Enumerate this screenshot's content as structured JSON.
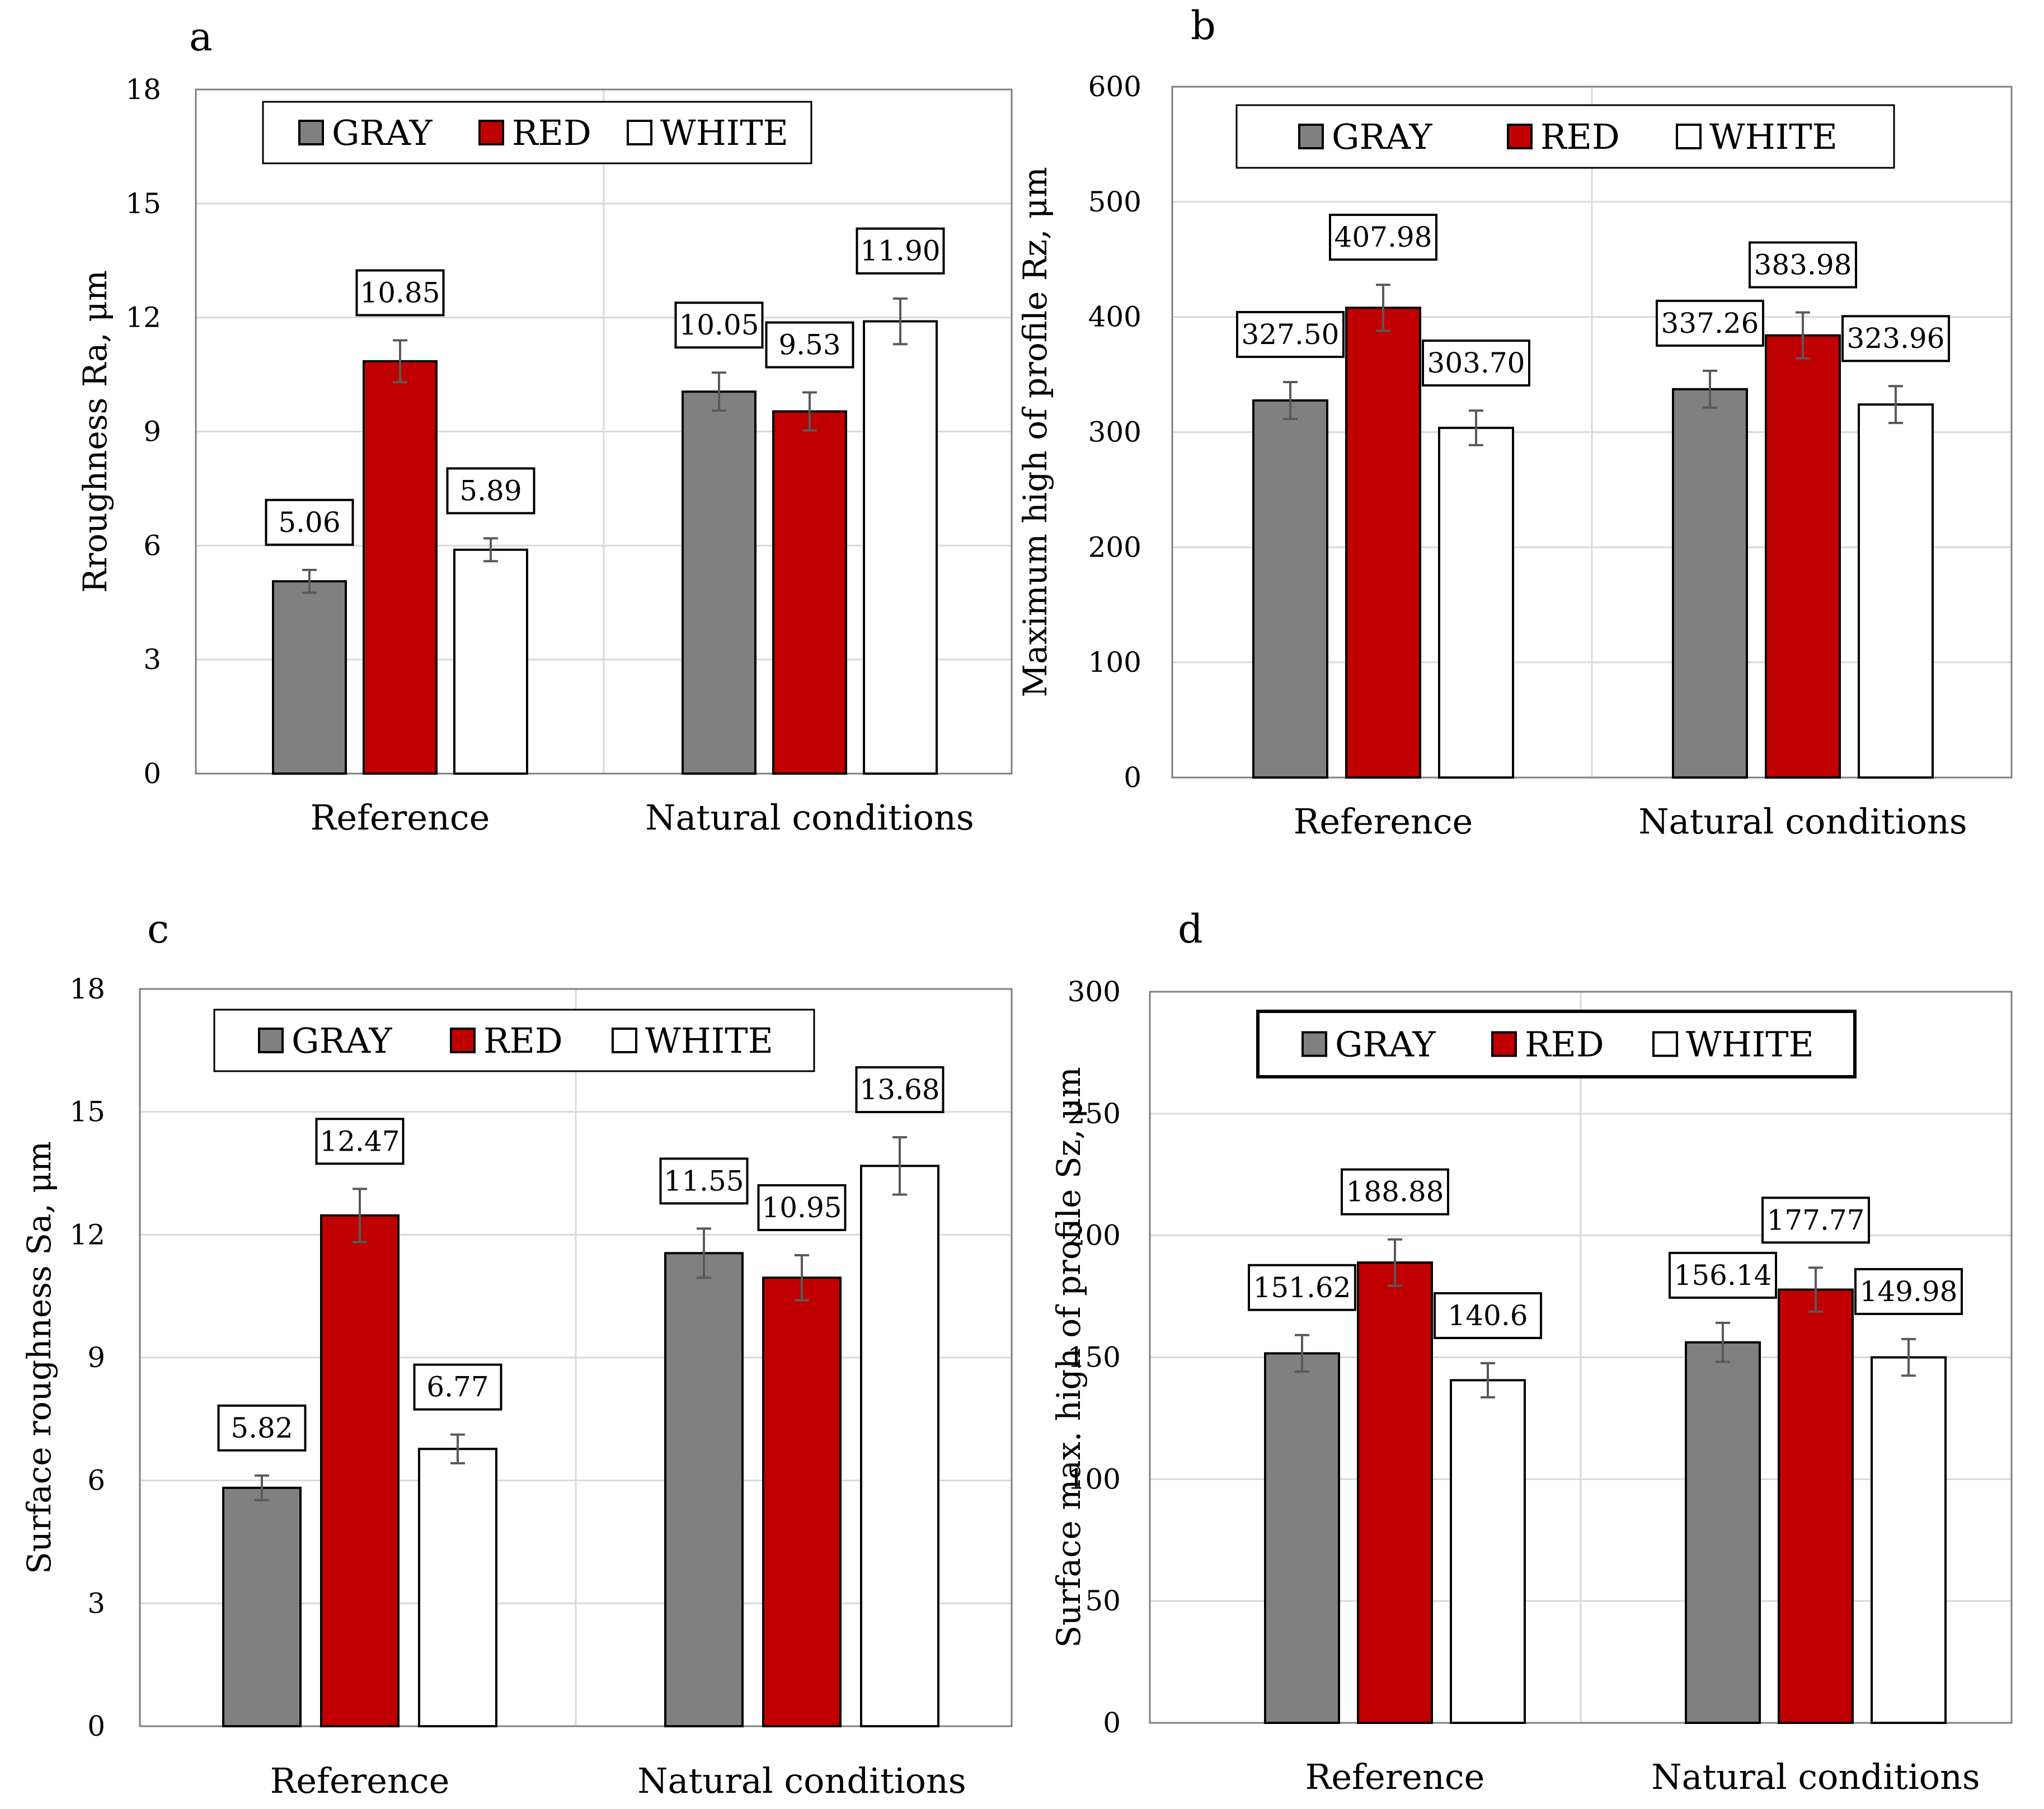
{
  "colors": {
    "gray": "#808080",
    "red": "#c00000",
    "white": "#ffffff",
    "gridline": "#d9d9d9",
    "plot_border": "#7f7f7f",
    "error_bar": "#595959",
    "outline": "#000000"
  },
  "chart_data": [
    {
      "id": "a",
      "panel_label": "a",
      "type": "bar",
      "categories": [
        "Reference",
        "Natural conditions"
      ],
      "series": [
        {
          "name": "GRAY",
          "color_key": "gray",
          "values": [
            5.06,
            10.05
          ],
          "errors": [
            0.3,
            0.5
          ]
        },
        {
          "name": "RED",
          "color_key": "red",
          "values": [
            10.85,
            9.53
          ],
          "errors": [
            0.55,
            0.5
          ]
        },
        {
          "name": "WHITE",
          "color_key": "white",
          "values": [
            5.89,
            11.9
          ],
          "errors": [
            0.3,
            0.6
          ]
        }
      ],
      "data_labels": [
        [
          "5.06",
          "10.05"
        ],
        [
          "10.85",
          "9.53"
        ],
        [
          "5.89",
          "11.90"
        ]
      ],
      "xlabel": "",
      "ylabel": "Rroughness Ra, μm",
      "ylim": [
        0,
        18
      ],
      "yticks": [
        0,
        3,
        6,
        9,
        12,
        15,
        18
      ],
      "grid": true,
      "legend_position": "top"
    },
    {
      "id": "b",
      "panel_label": "b",
      "type": "bar",
      "categories": [
        "Reference",
        "Natural conditions"
      ],
      "series": [
        {
          "name": "GRAY",
          "color_key": "gray",
          "values": [
            327.5,
            337.26
          ],
          "errors": [
            16,
            16
          ]
        },
        {
          "name": "RED",
          "color_key": "red",
          "values": [
            407.98,
            383.98
          ],
          "errors": [
            20,
            20
          ]
        },
        {
          "name": "WHITE",
          "color_key": "white",
          "values": [
            303.7,
            323.96
          ],
          "errors": [
            15,
            16
          ]
        }
      ],
      "data_labels": [
        [
          "327.50",
          "337.26"
        ],
        [
          "407.98",
          "383.98"
        ],
        [
          "303.70",
          "323.96"
        ]
      ],
      "xlabel": "",
      "ylabel": "Maximum high of profile Rz, μm",
      "ylim": [
        0,
        600
      ],
      "yticks": [
        0,
        100,
        200,
        300,
        400,
        500,
        600
      ],
      "grid": true,
      "legend_position": "top"
    },
    {
      "id": "c",
      "panel_label": "c",
      "type": "bar",
      "categories": [
        "Reference",
        "Natural conditions"
      ],
      "series": [
        {
          "name": "GRAY",
          "color_key": "gray",
          "values": [
            5.82,
            11.55
          ],
          "errors": [
            0.3,
            0.6
          ]
        },
        {
          "name": "RED",
          "color_key": "red",
          "values": [
            12.47,
            10.95
          ],
          "errors": [
            0.65,
            0.55
          ]
        },
        {
          "name": "WHITE",
          "color_key": "white",
          "values": [
            6.77,
            13.68
          ],
          "errors": [
            0.35,
            0.7
          ]
        }
      ],
      "data_labels": [
        [
          "5.82",
          "11.55"
        ],
        [
          "12.47",
          "10.95"
        ],
        [
          "6.77",
          "13.68"
        ]
      ],
      "xlabel": "",
      "ylabel": "Surface roughness Sa, μm",
      "ylim": [
        0,
        18
      ],
      "yticks": [
        0,
        3,
        6,
        9,
        12,
        15,
        18
      ],
      "grid": true,
      "legend_position": "top"
    },
    {
      "id": "d",
      "panel_label": "d",
      "type": "bar",
      "categories": [
        "Reference",
        "Natural conditions"
      ],
      "series": [
        {
          "name": "GRAY",
          "color_key": "gray",
          "values": [
            151.62,
            156.14
          ],
          "errors": [
            7.5,
            8
          ]
        },
        {
          "name": "RED",
          "color_key": "red",
          "values": [
            188.88,
            177.77
          ],
          "errors": [
            9.5,
            9
          ]
        },
        {
          "name": "WHITE",
          "color_key": "white",
          "values": [
            140.6,
            149.98
          ],
          "errors": [
            7,
            7.5
          ]
        }
      ],
      "data_labels": [
        [
          "151.62",
          "156.14"
        ],
        [
          "188.88",
          "177.77"
        ],
        [
          "140.6",
          "149.98"
        ]
      ],
      "xlabel": "",
      "ylabel": "Surface max. high of profile Sz, μm",
      "ylim": [
        0,
        300
      ],
      "yticks": [
        0,
        50,
        100,
        150,
        200,
        250,
        300
      ],
      "grid": true,
      "legend_position": "top"
    }
  ]
}
